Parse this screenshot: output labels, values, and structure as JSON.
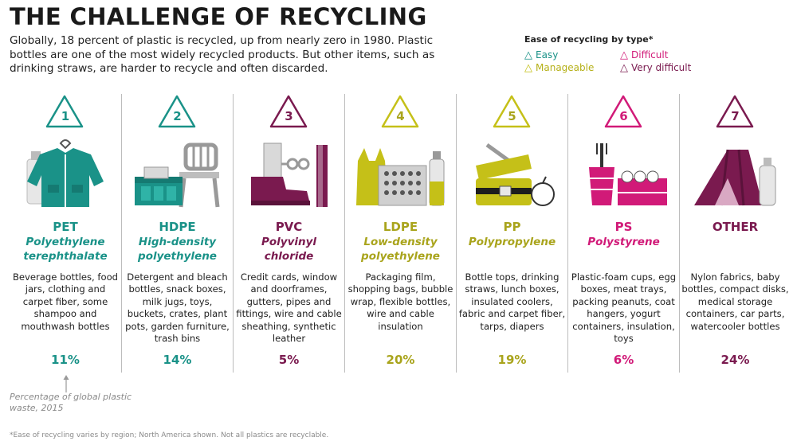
{
  "header": {
    "title": "THE CHALLENGE OF RECYCLING",
    "intro": "Globally, 18 percent of plastic is recycled, up from nearly zero in 1980. Plastic bottles are one of the most widely recycled products. But other items, such as drinking straws, are harder to recycle and often discarded."
  },
  "legend": {
    "title": "Ease of recycling by type*",
    "items": [
      {
        "label": "Easy",
        "color": "#1a9288"
      },
      {
        "label": "Difficult",
        "color": "#d11a78"
      },
      {
        "label": "Manageable",
        "color": "#c5c018"
      },
      {
        "label": "Very difficult",
        "color": "#7a1a4f"
      }
    ]
  },
  "plastics": [
    {
      "number": "1",
      "code": "PET",
      "name": "Polyethylene terephthalate",
      "uses": "Beverage bottles, food jars, clothing and carpet fiber, some shampoo and mouthwash bottles",
      "percent": "11%",
      "ease": "Easy",
      "color": "#1a9288",
      "illustration": "jacket-and-bottle-icon"
    },
    {
      "number": "2",
      "code": "HDPE",
      "name": "High-density polyethylene",
      "uses": "Detergent and bleach bottles, snack boxes, milk jugs, toys, buckets, crates, plant pots, garden furniture, trash bins",
      "percent": "14%",
      "ease": "Easy",
      "color": "#1a9288",
      "illustration": "chair-and-crate-icon"
    },
    {
      "number": "3",
      "code": "PVC",
      "name": "Polyvinyl chloride",
      "uses": "Credit cards, window and doorframes, gutters, pipes and fittings, wire and cable sheathing, synthetic leather",
      "percent": "5%",
      "ease": "Very difficult",
      "color": "#7a1a4f",
      "illustration": "boot-and-pipe-icon"
    },
    {
      "number": "4",
      "code": "LDPE",
      "name": "Low-density polyethylene",
      "uses": "Packaging film, shopping bags, bubble wrap, flexible bottles, wire and cable insulation",
      "percent": "20%",
      "ease": "Manageable",
      "color": "#c5c018",
      "illustration": "bag-and-bubblewrap-icon"
    },
    {
      "number": "5",
      "code": "PP",
      "name": "Polypropylene",
      "uses": "Bottle tops, drinking straws, lunch boxes, insulated coolers, fabric and carpet fiber, tarps, diapers",
      "percent": "19%",
      "ease": "Manageable",
      "color": "#c5c018",
      "illustration": "lunchbox-and-straw-icon"
    },
    {
      "number": "6",
      "code": "PS",
      "name": "Polystyrene",
      "uses": "Plastic-foam cups, egg boxes, meat trays, packing peanuts, coat hangers, yogurt containers, insulation, toys",
      "percent": "6%",
      "ease": "Difficult",
      "color": "#d11a78",
      "illustration": "cups-and-eggbox-icon"
    },
    {
      "number": "7",
      "code": "OTHER",
      "name": "",
      "uses": "Nylon fabrics, baby bottles, compact disks, medical storage containers, car parts, watercooler bottles",
      "percent": "24%",
      "ease": "Very difficult",
      "color": "#7a1a4f",
      "illustration": "tent-and-bottle-icon"
    }
  ],
  "percent_note": "Percentage of global plastic waste, 2015",
  "footnote": "*Ease of recycling varies by region; North America shown. Not all plastics are recyclable."
}
